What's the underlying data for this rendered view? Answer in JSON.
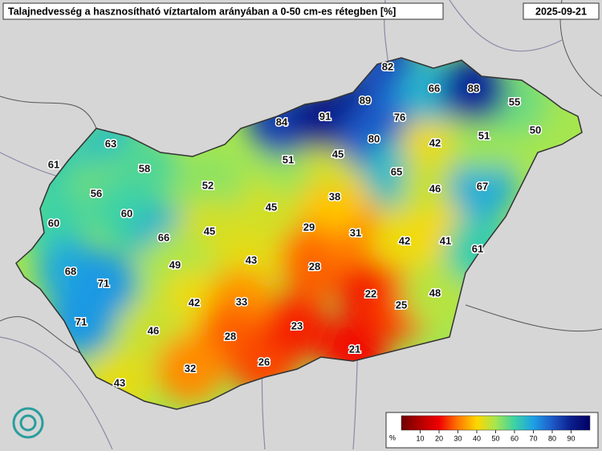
{
  "header": {
    "title": "Talajnedvesség a hasznosítható víztartalom arányában a 0-50 cm-es rétegben [%]",
    "date": "2025-09-21"
  },
  "stations": [
    {
      "value": 61
    },
    {
      "value": 63
    },
    {
      "value": 58
    },
    {
      "value": 56
    },
    {
      "value": 60
    },
    {
      "value": 60
    },
    {
      "value": 52
    },
    {
      "value": 66
    },
    {
      "value": 45
    },
    {
      "value": 68
    },
    {
      "value": 71
    },
    {
      "value": 49
    },
    {
      "value": 43
    },
    {
      "value": 71
    },
    {
      "value": 42
    },
    {
      "value": 33
    },
    {
      "value": 46
    },
    {
      "value": 28
    },
    {
      "value": 32
    },
    {
      "value": 26
    },
    {
      "value": 43
    },
    {
      "value": 23
    },
    {
      "value": 21
    },
    {
      "value": 28
    },
    {
      "value": 29
    },
    {
      "value": 31
    },
    {
      "value": 45
    },
    {
      "value": 38
    },
    {
      "value": 51
    },
    {
      "value": 45
    },
    {
      "value": 84
    },
    {
      "value": 91
    },
    {
      "value": 89
    },
    {
      "value": 82
    },
    {
      "value": 76
    },
    {
      "value": 80
    },
    {
      "value": 65
    },
    {
      "value": 42
    },
    {
      "value": 46
    },
    {
      "value": 42
    },
    {
      "value": 41
    },
    {
      "value": 22
    },
    {
      "value": 25
    },
    {
      "value": 48
    },
    {
      "value": 61
    },
    {
      "value": 67
    },
    {
      "value": 51
    },
    {
      "value": 50
    },
    {
      "value": 55
    },
    {
      "value": 66
    },
    {
      "value": 88
    }
  ],
  "colorbar": {
    "unit": "%",
    "lim": [
      0,
      100
    ],
    "ticks": [
      10,
      20,
      30,
      40,
      50,
      60,
      70,
      80,
      90
    ],
    "colors": [
      "#6e0000",
      "#b40000",
      "#f00000",
      "#ff7800",
      "#ffd700",
      "#a5e650",
      "#3cd2a5",
      "#1ea0e6",
      "#1e5ac8",
      "#0a1e8c",
      "#000064"
    ]
  }
}
